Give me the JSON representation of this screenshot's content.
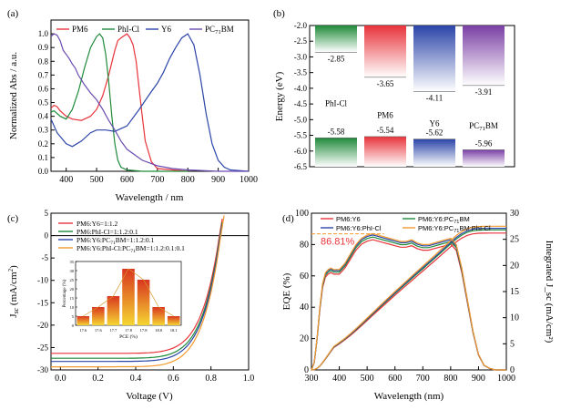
{
  "panels": {
    "a": {
      "label": "(a)",
      "xlabel": "Wavelength / nm",
      "ylabel": "Normalized Abs / a.u."
    },
    "b": {
      "label": "(b)",
      "ylabel": "Energy (eV)"
    },
    "c": {
      "label": "(c)",
      "xlabel": "Voltage (V)",
      "ylabel": "J_sc (mA/cm²)"
    },
    "d": {
      "label": "(d)",
      "xlabel": "Wavelength (nm)",
      "ylabel": "EQE (%)",
      "ylabel2": "Integrated J_sc (mA/cm²)"
    }
  },
  "chart_data": [
    {
      "id": "a",
      "type": "line",
      "xlabel": "Wavelength / nm",
      "ylabel": "Normalized Abs / a.u.",
      "xlim": [
        350,
        1000
      ],
      "ylim": [
        0.0,
        1.1
      ],
      "xticks": [
        400,
        500,
        600,
        700,
        800,
        900,
        1000
      ],
      "yticks": [
        0.0,
        0.1,
        0.2,
        0.3,
        0.4,
        0.5,
        0.6,
        0.7,
        0.8,
        0.9,
        1.0
      ],
      "legend": "top",
      "series": [
        {
          "name": "PM6",
          "color": "#e8333a",
          "x": [
            350,
            360,
            370,
            380,
            400,
            420,
            450,
            480,
            500,
            520,
            540,
            560,
            570,
            580,
            600,
            610,
            620,
            630,
            640,
            650,
            660,
            680,
            700,
            750,
            800
          ],
          "y": [
            0.46,
            0.48,
            0.47,
            0.44,
            0.4,
            0.38,
            0.37,
            0.4,
            0.45,
            0.55,
            0.7,
            0.88,
            0.95,
            0.97,
            1.0,
            0.97,
            0.92,
            0.8,
            0.6,
            0.4,
            0.22,
            0.07,
            0.02,
            0.01,
            0.0
          ]
        },
        {
          "name": "PhI-Cl",
          "color": "#1f8a3a",
          "x": [
            350,
            360,
            370,
            380,
            400,
            420,
            440,
            460,
            480,
            500,
            510,
            520,
            530,
            540,
            550,
            560,
            570,
            580,
            600,
            650,
            700,
            800
          ],
          "y": [
            0.43,
            0.44,
            0.42,
            0.4,
            0.38,
            0.45,
            0.58,
            0.75,
            0.9,
            0.98,
            1.0,
            0.97,
            0.85,
            0.65,
            0.4,
            0.2,
            0.08,
            0.03,
            0.01,
            0.0,
            0.0,
            0.0
          ]
        },
        {
          "name": "Y6",
          "color": "#2b45a8",
          "x": [
            350,
            370,
            400,
            420,
            450,
            480,
            500,
            530,
            560,
            600,
            640,
            680,
            700,
            720,
            740,
            760,
            780,
            800,
            820,
            840,
            860,
            880,
            900,
            920,
            940,
            1000
          ],
          "y": [
            0.38,
            0.28,
            0.2,
            0.18,
            0.22,
            0.28,
            0.3,
            0.3,
            0.29,
            0.33,
            0.45,
            0.58,
            0.64,
            0.72,
            0.82,
            0.9,
            0.97,
            1.0,
            0.92,
            0.7,
            0.42,
            0.2,
            0.08,
            0.03,
            0.01,
            0.0
          ]
        },
        {
          "name": "PC71BM",
          "color": "#6a4bb0",
          "x": [
            350,
            360,
            370,
            380,
            390,
            400,
            410,
            420,
            430,
            440,
            460,
            480,
            500,
            520,
            540,
            560,
            580,
            600,
            650,
            700,
            750,
            800,
            900,
            1000
          ],
          "y": [
            0.98,
            1.0,
            0.99,
            0.95,
            0.88,
            0.85,
            0.82,
            0.78,
            0.75,
            0.7,
            0.63,
            0.57,
            0.52,
            0.45,
            0.37,
            0.3,
            0.22,
            0.16,
            0.08,
            0.04,
            0.02,
            0.01,
            0.0,
            0.0
          ]
        }
      ]
    },
    {
      "id": "b",
      "type": "bar",
      "ylabel": "Energy (eV)",
      "ylim": [
        -6.5,
        -2.0
      ],
      "yticks": [
        -6.5,
        -6.0,
        -5.5,
        -5.0,
        -4.5,
        -4.0,
        -3.5,
        -3.0,
        -2.5,
        -2.0
      ],
      "materials": [
        {
          "name": "PhI-Cl",
          "lumo": -2.85,
          "homo": -5.58,
          "lumo_label": "-2.85",
          "homo_label": "-5.58",
          "color": "#1f8a3a"
        },
        {
          "name": "PM6",
          "lumo": -3.65,
          "homo": -5.54,
          "lumo_label": "-3.65",
          "homo_label": "-5.54",
          "color": "#e8333a"
        },
        {
          "name": "Y6",
          "lumo": -4.11,
          "homo": -5.62,
          "lumo_label": "-4.11",
          "homo_label": "-5.62",
          "color": "#2b45a8"
        },
        {
          "name": "PC71BM",
          "lumo": -3.91,
          "homo": -5.96,
          "lumo_label": "-3.91",
          "homo_label": "-5.96",
          "color": "#7a3fa5"
        }
      ]
    },
    {
      "id": "c",
      "type": "line",
      "xlabel": "Voltage (V)",
      "ylabel": "J_sc (mA/cm²)",
      "xlim": [
        -0.05,
        1.0
      ],
      "ylim": [
        -30,
        5
      ],
      "xticks": [
        0.0,
        0.2,
        0.4,
        0.6,
        0.8,
        1.0
      ],
      "yticks": [
        -30,
        -25,
        -20,
        -15,
        -10,
        -5,
        0,
        5
      ],
      "legend": "top-left",
      "series": [
        {
          "name": "PM6:Y6=1:1.2",
          "color": "#e8333a",
          "jsc": 26.3,
          "voc": 0.845
        },
        {
          "name": "PM6:PhI-Cl=1:1.2:0.1",
          "color": "#1f8a3a",
          "jsc": 27.4,
          "voc": 0.848
        },
        {
          "name": "PM6:Y6:PC71BM=1:1.2:0.1",
          "color": "#2b45a8",
          "jsc": 28.1,
          "voc": 0.85
        },
        {
          "name": "PM6:Y6:PhI-Cl:PC71BM=1:1.2:0.1:0.1",
          "color": "#f39a2e",
          "jsc": 29.3,
          "voc": 0.852
        }
      ],
      "inset": {
        "type": "bar",
        "xlabel": "PCE (%)",
        "ylabel": "Percentage (%)",
        "categories": [
          "17.6",
          "17.6",
          "17.7",
          "17.8",
          "17.8",
          "18.0",
          "18.1"
        ],
        "values": [
          5,
          10,
          16,
          31,
          25,
          10,
          5
        ],
        "ylim": [
          0,
          35
        ],
        "yticks": [
          0,
          5,
          10,
          15,
          20,
          25,
          30,
          35
        ]
      }
    },
    {
      "id": "d",
      "type": "line",
      "xlabel": "Wavelength (nm)",
      "ylabel": "EQE (%)",
      "ylabel2": "Integrated J_sc (mA/cm²)",
      "xlim": [
        300,
        1000
      ],
      "ylim": [
        0,
        100
      ],
      "ylim2": [
        0,
        30
      ],
      "xticks": [
        300,
        400,
        500,
        600,
        700,
        800,
        900,
        1000
      ],
      "yticks": [
        0,
        20,
        40,
        60,
        80,
        100
      ],
      "yticks2": [
        0,
        5,
        10,
        15,
        20,
        25,
        30
      ],
      "legend": "top",
      "annotation": "86.81%",
      "annotation_value": 86.81,
      "series": [
        {
          "name": "PM6:Y6",
          "color": "#e8333a",
          "scale": 0.955,
          "jsc_final": 26.2
        },
        {
          "name": "PM6:Y6:PC71BM",
          "color": "#1f8a3a",
          "scale": 0.975,
          "jsc_final": 26.8
        },
        {
          "name": "PM6:Y6:PhI-Cl",
          "color": "#2b45a8",
          "scale": 0.99,
          "jsc_final": 27.1
        },
        {
          "name": "PM6:Y6:PC71BM:PhI-Cl",
          "color": "#f39a2e",
          "scale": 1.0,
          "jsc_final": 27.5
        }
      ],
      "eqe_profile": {
        "x": [
          300,
          310,
          320,
          330,
          340,
          350,
          360,
          370,
          380,
          400,
          420,
          440,
          460,
          480,
          500,
          520,
          540,
          560,
          580,
          600,
          620,
          640,
          660,
          680,
          700,
          720,
          740,
          760,
          780,
          800,
          820,
          840,
          860,
          880,
          900,
          920,
          940,
          960,
          980,
          1000
        ],
        "y": [
          0,
          5,
          20,
          40,
          55,
          62,
          64,
          65,
          64,
          64,
          68,
          74,
          80,
          84,
          86,
          87,
          86,
          85,
          84,
          83,
          82,
          82,
          83,
          81,
          80,
          80,
          81,
          82,
          83,
          84,
          80,
          65,
          45,
          25,
          10,
          3,
          1,
          0,
          0,
          0
        ]
      }
    }
  ]
}
